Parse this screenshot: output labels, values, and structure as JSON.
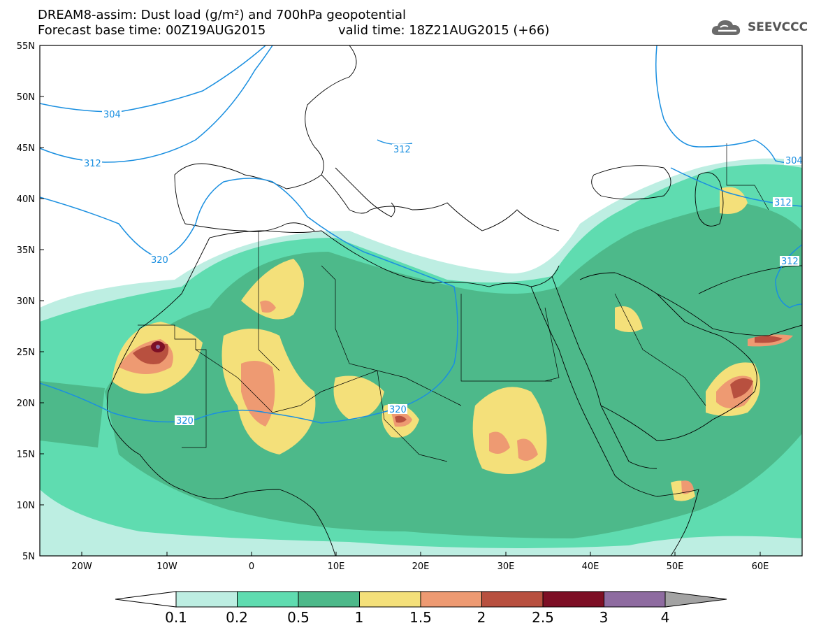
{
  "header": {
    "title_line1": "DREAM8-assim: Dust load (g/m²) and 700hPa geopotential",
    "title_line2": "Forecast base time: 00Z19AUG2015",
    "title_line2b": "valid time: 18Z21AUG2015 (+66)",
    "logo_text": "SEEVCCC"
  },
  "map": {
    "lat_labels": [
      "55N",
      "50N",
      "45N",
      "40N",
      "35N",
      "30N",
      "25N",
      "20N",
      "15N",
      "10N",
      "5N"
    ],
    "lon_labels": [
      "20W",
      "10W",
      "0",
      "10E",
      "20E",
      "30E",
      "40E",
      "50E",
      "60E"
    ],
    "geopotential_labels": [
      "304",
      "312",
      "320",
      "320",
      "320",
      "312",
      "304",
      "312",
      "312"
    ],
    "contour_color": "#1a8fe0"
  },
  "colorbar": {
    "labels": [
      "0.1",
      "0.2",
      "0.5",
      "1",
      "1.5",
      "2",
      "2.5",
      "3",
      "4"
    ],
    "colors": [
      "#bdeee2",
      "#5fdcb0",
      "#4db98a",
      "#f4e07a",
      "#ee9a72",
      "#b8503f",
      "#7d0f25",
      "#8e6ba0",
      "#a3a3a3"
    ]
  }
}
